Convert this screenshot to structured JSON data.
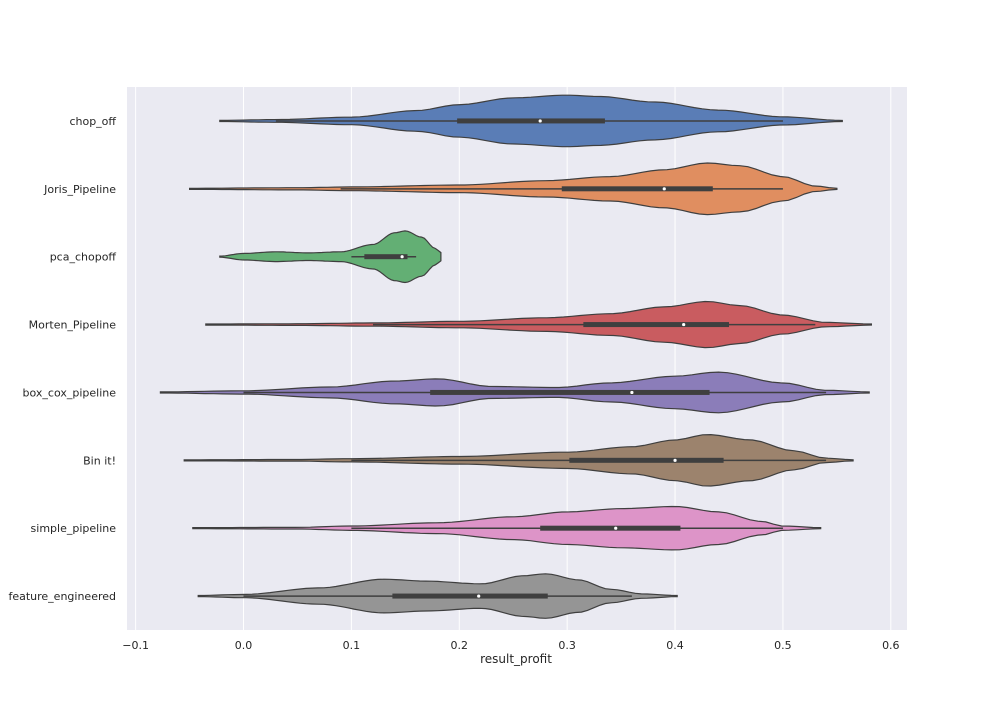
{
  "chart_data": {
    "type": "violin",
    "orientation": "horizontal",
    "xlabel": "result_profit",
    "ylabel": "",
    "xlim": [
      -0.108,
      0.615
    ],
    "xticks": [
      -0.1,
      0.0,
      0.1,
      0.2,
      0.3,
      0.4,
      0.5,
      0.6
    ],
    "xtick_labels": [
      "−0.1",
      "0.0",
      "0.1",
      "0.2",
      "0.3",
      "0.4",
      "0.5",
      "0.6"
    ],
    "grid": true,
    "background": "#eaeaf2",
    "grid_color": "#ffffff",
    "categories": [
      "chop_off",
      "Joris_Pipeline",
      "pca_chopoff",
      "Morten_Pipeline",
      "box_cox_pipeline",
      "Bin it!",
      "simple_pipeline",
      "feature_engineered"
    ],
    "series": [
      {
        "color": "#4c72b0",
        "min": -0.022,
        "max": 0.555,
        "q1": 0.198,
        "median": 0.275,
        "q3": 0.335,
        "whisker_low": 0.03,
        "whisker_high": 0.5,
        "density": [
          [
            -0.022,
            0.02
          ],
          [
            0.03,
            0.05
          ],
          [
            0.1,
            0.14
          ],
          [
            0.16,
            0.38
          ],
          [
            0.2,
            0.6
          ],
          [
            0.25,
            0.85
          ],
          [
            0.3,
            0.95
          ],
          [
            0.33,
            0.9
          ],
          [
            0.38,
            0.7
          ],
          [
            0.44,
            0.4
          ],
          [
            0.5,
            0.15
          ],
          [
            0.555,
            0.02
          ]
        ]
      },
      {
        "color": "#dd8452",
        "min": -0.05,
        "max": 0.55,
        "q1": 0.295,
        "median": 0.39,
        "q3": 0.435,
        "whisker_low": 0.09,
        "whisker_high": 0.5,
        "density": [
          [
            -0.05,
            0.02
          ],
          [
            0.05,
            0.04
          ],
          [
            0.1,
            0.07
          ],
          [
            0.2,
            0.14
          ],
          [
            0.28,
            0.3
          ],
          [
            0.34,
            0.45
          ],
          [
            0.39,
            0.7
          ],
          [
            0.43,
            0.95
          ],
          [
            0.46,
            0.85
          ],
          [
            0.5,
            0.45
          ],
          [
            0.53,
            0.1
          ],
          [
            0.55,
            0.02
          ]
        ]
      },
      {
        "color": "#55a868",
        "min": -0.022,
        "max": 0.183,
        "q1": 0.112,
        "median": 0.147,
        "q3": 0.152,
        "whisker_low": 0.1,
        "whisker_high": 0.16,
        "density": [
          [
            -0.022,
            0.02
          ],
          [
            0.0,
            0.12
          ],
          [
            0.03,
            0.18
          ],
          [
            0.06,
            0.14
          ],
          [
            0.09,
            0.18
          ],
          [
            0.12,
            0.45
          ],
          [
            0.14,
            0.88
          ],
          [
            0.15,
            0.95
          ],
          [
            0.165,
            0.72
          ],
          [
            0.178,
            0.3
          ],
          [
            0.183,
            0.15
          ]
        ]
      },
      {
        "color": "#c44e52",
        "min": -0.035,
        "max": 0.582,
        "q1": 0.315,
        "median": 0.408,
        "q3": 0.45,
        "whisker_low": 0.12,
        "whisker_high": 0.53,
        "density": [
          [
            -0.035,
            0.02
          ],
          [
            0.05,
            0.03
          ],
          [
            0.12,
            0.06
          ],
          [
            0.2,
            0.12
          ],
          [
            0.28,
            0.25
          ],
          [
            0.34,
            0.4
          ],
          [
            0.39,
            0.65
          ],
          [
            0.43,
            0.85
          ],
          [
            0.46,
            0.7
          ],
          [
            0.5,
            0.35
          ],
          [
            0.54,
            0.08
          ],
          [
            0.582,
            0.02
          ]
        ]
      },
      {
        "color": "#8172b3",
        "min": -0.077,
        "max": 0.58,
        "q1": 0.173,
        "median": 0.36,
        "q3": 0.432,
        "whisker_low": 0.0,
        "whisker_high": 0.54,
        "density": [
          [
            -0.077,
            0.02
          ],
          [
            0.0,
            0.06
          ],
          [
            0.08,
            0.2
          ],
          [
            0.14,
            0.42
          ],
          [
            0.18,
            0.5
          ],
          [
            0.23,
            0.22
          ],
          [
            0.29,
            0.18
          ],
          [
            0.34,
            0.35
          ],
          [
            0.4,
            0.6
          ],
          [
            0.44,
            0.75
          ],
          [
            0.5,
            0.35
          ],
          [
            0.54,
            0.08
          ],
          [
            0.58,
            0.02
          ]
        ]
      },
      {
        "color": "#937860",
        "min": -0.055,
        "max": 0.565,
        "q1": 0.302,
        "median": 0.4,
        "q3": 0.445,
        "whisker_low": 0.1,
        "whisker_high": 0.54,
        "density": [
          [
            -0.055,
            0.02
          ],
          [
            0.05,
            0.03
          ],
          [
            0.1,
            0.06
          ],
          [
            0.2,
            0.14
          ],
          [
            0.3,
            0.3
          ],
          [
            0.36,
            0.5
          ],
          [
            0.4,
            0.75
          ],
          [
            0.43,
            0.95
          ],
          [
            0.47,
            0.75
          ],
          [
            0.51,
            0.35
          ],
          [
            0.54,
            0.08
          ],
          [
            0.565,
            0.02
          ]
        ]
      },
      {
        "color": "#da8bc3",
        "min": -0.047,
        "max": 0.535,
        "q1": 0.275,
        "median": 0.345,
        "q3": 0.405,
        "whisker_low": 0.1,
        "whisker_high": 0.5,
        "density": [
          [
            -0.047,
            0.02
          ],
          [
            0.05,
            0.03
          ],
          [
            0.1,
            0.08
          ],
          [
            0.18,
            0.2
          ],
          [
            0.25,
            0.42
          ],
          [
            0.3,
            0.6
          ],
          [
            0.35,
            0.72
          ],
          [
            0.4,
            0.8
          ],
          [
            0.44,
            0.6
          ],
          [
            0.48,
            0.25
          ],
          [
            0.5,
            0.08
          ],
          [
            0.535,
            0.02
          ]
        ]
      },
      {
        "color": "#8c8c8c",
        "min": -0.042,
        "max": 0.402,
        "q1": 0.138,
        "median": 0.218,
        "q3": 0.282,
        "whisker_low": 0.0,
        "whisker_high": 0.36,
        "density": [
          [
            -0.042,
            0.02
          ],
          [
            0.0,
            0.06
          ],
          [
            0.07,
            0.3
          ],
          [
            0.13,
            0.62
          ],
          [
            0.17,
            0.55
          ],
          [
            0.22,
            0.45
          ],
          [
            0.26,
            0.75
          ],
          [
            0.28,
            0.82
          ],
          [
            0.31,
            0.6
          ],
          [
            0.34,
            0.25
          ],
          [
            0.37,
            0.08
          ],
          [
            0.402,
            0.02
          ]
        ]
      }
    ]
  }
}
